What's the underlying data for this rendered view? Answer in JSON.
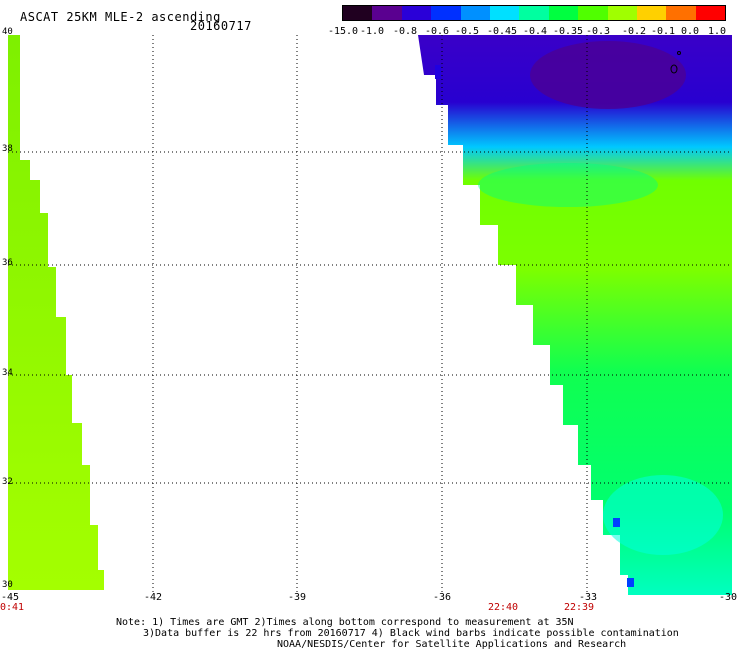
{
  "header": {
    "title": "ASCAT 25KM MLE-2 ascending",
    "date": "20160717"
  },
  "colorbar": {
    "labels": [
      "-15.0",
      "-1.0",
      "-0.8",
      "-0.6",
      "-0.5",
      "-0.45",
      "-0.4",
      "-0.35",
      "-0.3",
      "-0.2",
      "-0.1",
      "0.0",
      "1.0"
    ],
    "colors": [
      "#200020",
      "#5a0090",
      "#2a00d8",
      "#0030ff",
      "#0090ff",
      "#00e0ff",
      "#00ffa0",
      "#00ff40",
      "#50ff00",
      "#a0ff00",
      "#ffd000",
      "#ff7000",
      "#ff0000"
    ]
  },
  "map": {
    "lat_labels": [
      "40",
      "38",
      "36",
      "34",
      "32",
      "30"
    ],
    "lon_labels": [
      "-45",
      "-42",
      "-39",
      "-36",
      "-33",
      "-30"
    ],
    "times": [
      "0:41",
      "22:40",
      "22:39"
    ],
    "lon_range": [
      -45,
      -30
    ],
    "lat_range": [
      30,
      40
    ]
  },
  "notes": {
    "line1": "Note: 1) Times are GMT 2)Times along bottom correspond to measurement at 35N",
    "line2": "3)Data buffer is 22 hrs from 20160717 4) Black wind barbs indicate possible contamination",
    "line3": "NOAA/NESDIS/Center for Satellite Applications and Research"
  }
}
